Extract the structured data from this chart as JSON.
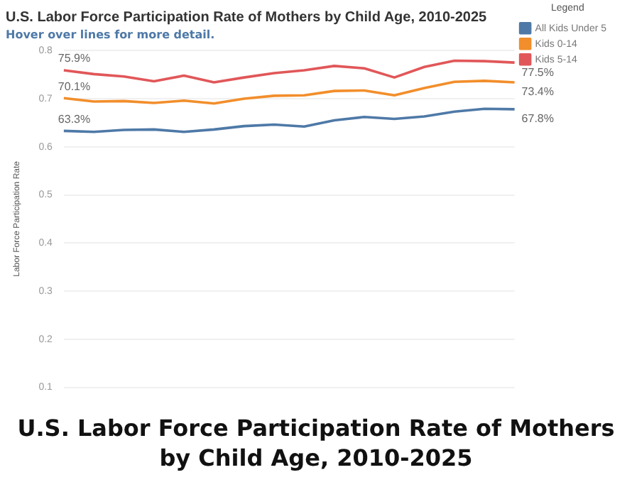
{
  "chart_data": {
    "type": "line",
    "title": "U.S. Labor Force Participation Rate of Mothers by Child Age, 2010-2025",
    "subtitle": "Hover over lines for more detail.",
    "ylabel": "Labor Force Participation Rate",
    "legend_title": "Legend",
    "legend": "top right",
    "grid": "y",
    "marker": "none",
    "line_style": "solid",
    "tick_labels": "y",
    "annotations": [
      "U.S. Labor Force Participation Rate of Mothers by Child Age, 2010-2025"
    ],
    "categories": [
      null,
      null,
      null,
      null,
      null,
      null,
      null,
      null,
      null,
      null,
      null,
      null,
      null,
      null,
      null,
      null
    ],
    "ylim": [
      0.1,
      0.8
    ],
    "yticks": [
      0.1,
      0.2,
      0.3,
      0.4,
      0.5,
      0.6,
      0.7,
      0.8
    ],
    "series": [
      {
        "name": "All Kids Under 5",
        "color": "#4e79a7",
        "values": [
          0.633,
          0.631,
          0.635,
          0.636,
          0.631,
          0.636,
          0.643,
          0.646,
          0.642,
          0.655,
          0.662,
          0.658,
          0.663,
          0.673,
          0.679,
          0.678
        ],
        "value_labels": [
          "63.3%",
          null,
          null,
          null,
          null,
          null,
          null,
          null,
          null,
          null,
          null,
          null,
          null,
          null,
          null,
          "67.8%"
        ]
      },
      {
        "name": "Kids 0-14",
        "color": "#f28e2b",
        "values": [
          0.701,
          0.694,
          0.695,
          0.691,
          0.696,
          0.69,
          0.7,
          0.706,
          0.707,
          0.716,
          0.717,
          0.707,
          0.722,
          0.735,
          0.737,
          0.734
        ],
        "value_labels": [
          "70.1%",
          null,
          null,
          null,
          null,
          null,
          null,
          null,
          null,
          null,
          null,
          null,
          null,
          null,
          null,
          "73.4%"
        ]
      },
      {
        "name": "Kids 5-14",
        "color": "#e15759",
        "values": [
          0.759,
          0.751,
          0.746,
          0.736,
          0.748,
          0.734,
          0.744,
          0.753,
          0.759,
          0.768,
          0.763,
          0.744,
          0.766,
          0.779,
          0.778,
          0.775
        ],
        "value_labels": [
          "75.9%",
          null,
          null,
          null,
          null,
          null,
          null,
          null,
          null,
          null,
          null,
          null,
          null,
          null,
          null,
          "77.5%"
        ]
      }
    ]
  }
}
